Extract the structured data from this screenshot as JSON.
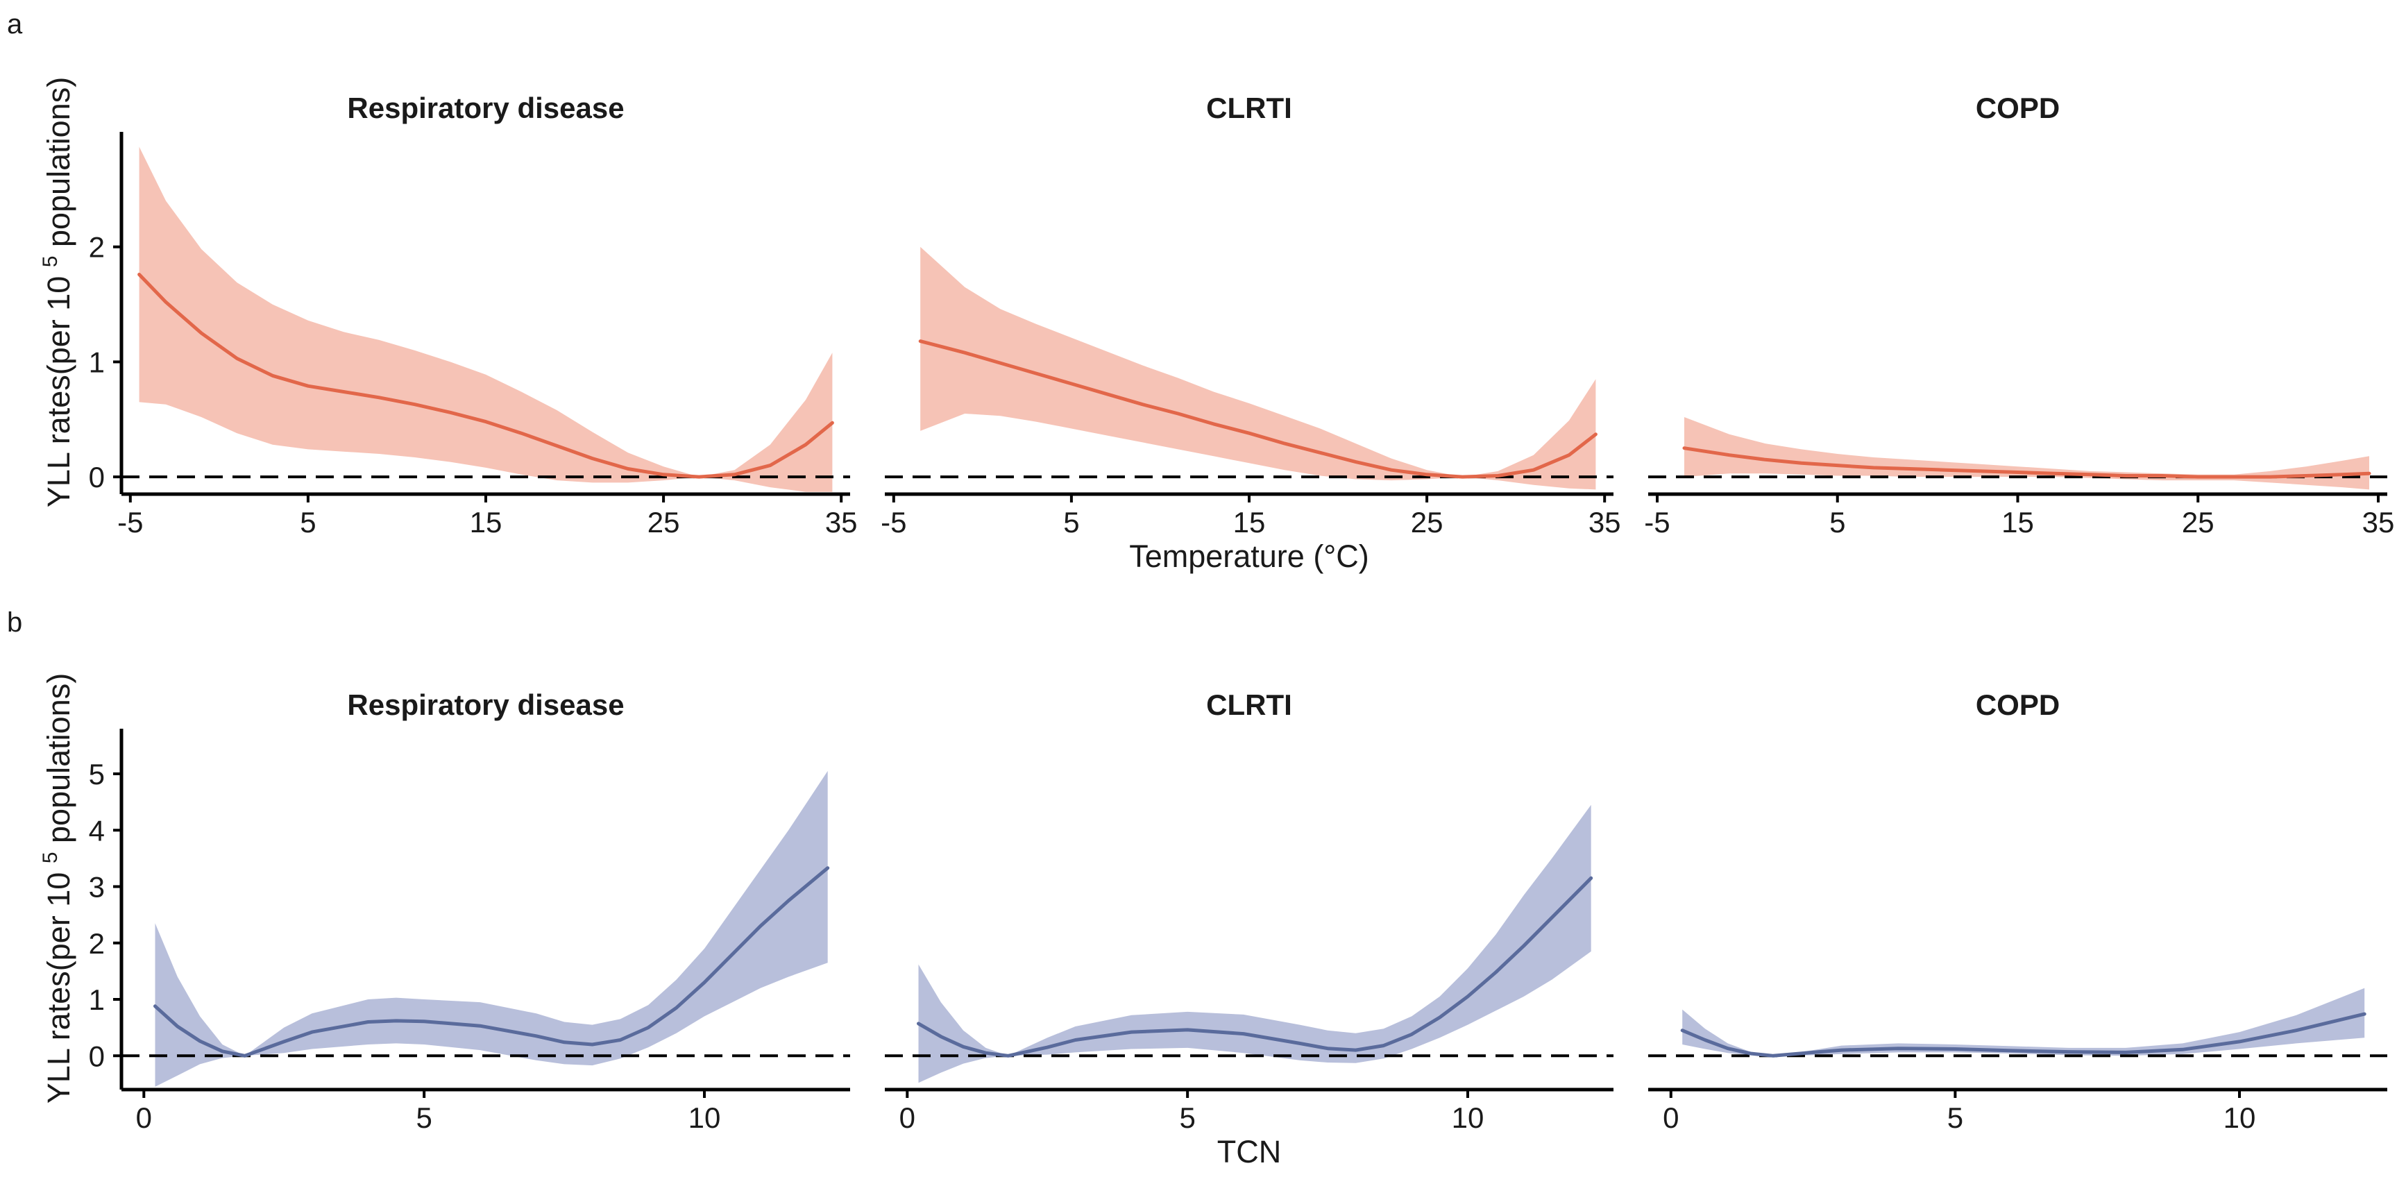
{
  "panel_labels": [
    "a",
    "b"
  ],
  "colors": {
    "temp_line": "#e2674a",
    "temp_band": "#f6c3b6",
    "tcn_line": "#5a6b9c",
    "tcn_band": "#b8bfdb"
  },
  "chart_data": [
    {
      "id": "a1",
      "row": "a",
      "type": "line",
      "title": "Respiratory disease",
      "xlabel": "",
      "ylabel": "YLL rates(per 10^5 populations)",
      "xlim": [
        -5.5,
        35.5
      ],
      "ylim": [
        -0.15,
        3.0
      ],
      "xticks": [
        -5,
        5,
        15,
        25,
        35
      ],
      "xtick_labels": [
        "-5",
        "5",
        "15",
        "25",
        "35"
      ],
      "yticks": [
        0,
        1,
        2
      ],
      "ytick_labels": [
        "0",
        "1",
        "2"
      ],
      "x": [
        -4.5,
        -3,
        -1,
        1,
        3,
        5,
        7,
        9,
        11,
        13,
        15,
        17,
        19,
        21,
        23,
        25,
        27,
        29,
        31,
        33,
        34.5
      ],
      "y": [
        1.76,
        1.52,
        1.25,
        1.03,
        0.88,
        0.79,
        0.74,
        0.69,
        0.63,
        0.56,
        0.48,
        0.38,
        0.27,
        0.16,
        0.07,
        0.02,
        0.0,
        0.02,
        0.1,
        0.28,
        0.47
      ],
      "lower": [
        0.65,
        0.63,
        0.52,
        0.38,
        0.28,
        0.24,
        0.22,
        0.2,
        0.17,
        0.13,
        0.08,
        0.02,
        -0.03,
        -0.05,
        -0.05,
        -0.03,
        0.0,
        -0.03,
        -0.09,
        -0.13,
        -0.13
      ],
      "upper": [
        2.87,
        2.4,
        1.98,
        1.69,
        1.5,
        1.36,
        1.26,
        1.19,
        1.1,
        1.0,
        0.89,
        0.74,
        0.58,
        0.39,
        0.21,
        0.09,
        0.0,
        0.06,
        0.28,
        0.67,
        1.08
      ],
      "reference_line": 0
    },
    {
      "id": "a2",
      "row": "a",
      "type": "line",
      "title": "CLRTI",
      "xlabel": "Temperature (°C)",
      "ylabel": "",
      "xlim": [
        -5.5,
        35.5
      ],
      "ylim": [
        -0.15,
        3.0
      ],
      "xticks": [
        -5,
        5,
        15,
        25,
        35
      ],
      "xtick_labels": [
        "-5",
        "5",
        "15",
        "25",
        "35"
      ],
      "x": [
        -3.5,
        -1,
        1,
        3,
        5,
        7,
        9,
        11,
        13,
        15,
        17,
        19,
        21,
        23,
        25,
        27,
        29,
        31,
        33,
        34.5
      ],
      "y": [
        1.18,
        1.08,
        0.99,
        0.9,
        0.81,
        0.72,
        0.63,
        0.55,
        0.46,
        0.38,
        0.29,
        0.21,
        0.13,
        0.06,
        0.02,
        0.0,
        0.01,
        0.06,
        0.19,
        0.37
      ],
      "lower": [
        0.4,
        0.55,
        0.53,
        0.48,
        0.42,
        0.36,
        0.3,
        0.24,
        0.18,
        0.12,
        0.06,
        0.01,
        -0.02,
        -0.03,
        -0.02,
        0.0,
        -0.03,
        -0.07,
        -0.1,
        -0.11
      ],
      "upper": [
        2.0,
        1.65,
        1.46,
        1.33,
        1.21,
        1.09,
        0.97,
        0.86,
        0.74,
        0.64,
        0.53,
        0.42,
        0.29,
        0.16,
        0.06,
        0.0,
        0.05,
        0.19,
        0.49,
        0.85
      ],
      "reference_line": 0
    },
    {
      "id": "a3",
      "row": "a",
      "type": "line",
      "title": "COPD",
      "xlabel": "",
      "ylabel": "",
      "xlim": [
        -5.5,
        35.5
      ],
      "ylim": [
        -0.15,
        3.0
      ],
      "xticks": [
        -5,
        5,
        15,
        25,
        35
      ],
      "xtick_labels": [
        "-5",
        "5",
        "15",
        "25",
        "35"
      ],
      "x": [
        -3.5,
        -1,
        1,
        3,
        5,
        7,
        9,
        11,
        13,
        15,
        17,
        19,
        21,
        23,
        25,
        27,
        29,
        31,
        33,
        34.5
      ],
      "y": [
        0.25,
        0.19,
        0.15,
        0.12,
        0.1,
        0.08,
        0.07,
        0.06,
        0.05,
        0.04,
        0.03,
        0.02,
        0.01,
        0.01,
        0.0,
        0.0,
        0.0,
        0.01,
        0.02,
        0.03
      ],
      "lower": [
        0.0,
        0.03,
        0.03,
        0.02,
        0.01,
        0.01,
        0.0,
        0.0,
        0.0,
        0.0,
        0.0,
        -0.01,
        -0.02,
        -0.03,
        -0.03,
        -0.03,
        -0.05,
        -0.07,
        -0.09,
        -0.11
      ],
      "upper": [
        0.52,
        0.37,
        0.29,
        0.24,
        0.2,
        0.17,
        0.15,
        0.13,
        0.11,
        0.09,
        0.07,
        0.05,
        0.04,
        0.03,
        0.02,
        0.02,
        0.05,
        0.09,
        0.14,
        0.18
      ],
      "reference_line": 0
    },
    {
      "id": "b1",
      "row": "b",
      "type": "line",
      "title": "Respiratory disease",
      "xlabel": "",
      "ylabel": "YLL rates(per 10^5 populations)",
      "xlim": [
        -0.4,
        12.6
      ],
      "ylim": [
        -0.6,
        5.8
      ],
      "xticks": [
        0,
        5,
        10
      ],
      "xtick_labels": [
        "0",
        "5",
        "10"
      ],
      "yticks": [
        0,
        1,
        2,
        3,
        4,
        5
      ],
      "ytick_labels": [
        "0",
        "1",
        "2",
        "3",
        "4",
        "5"
      ],
      "x": [
        0.2,
        0.6,
        1.0,
        1.4,
        1.8,
        2.5,
        3.0,
        4.0,
        4.5,
        5.0,
        6.0,
        7.0,
        7.5,
        8.0,
        8.5,
        9.0,
        9.5,
        10.0,
        10.5,
        11.0,
        11.5,
        12.2
      ],
      "y": [
        0.88,
        0.52,
        0.26,
        0.08,
        0.0,
        0.25,
        0.42,
        0.6,
        0.62,
        0.61,
        0.53,
        0.35,
        0.24,
        0.2,
        0.28,
        0.5,
        0.85,
        1.3,
        1.8,
        2.3,
        2.75,
        3.33
      ],
      "lower": [
        -0.55,
        -0.35,
        -0.15,
        -0.04,
        0.0,
        0.05,
        0.12,
        0.2,
        0.22,
        0.2,
        0.1,
        -0.08,
        -0.15,
        -0.17,
        -0.05,
        0.15,
        0.4,
        0.7,
        0.95,
        1.2,
        1.4,
        1.65
      ],
      "upper": [
        2.35,
        1.4,
        0.7,
        0.2,
        0.0,
        0.5,
        0.75,
        1.0,
        1.03,
        1.0,
        0.95,
        0.75,
        0.6,
        0.55,
        0.65,
        0.9,
        1.35,
        1.9,
        2.6,
        3.3,
        4.0,
        5.05
      ],
      "reference_line": 0
    },
    {
      "id": "b2",
      "row": "b",
      "type": "line",
      "title": "CLRTI",
      "xlabel": "TCN",
      "ylabel": "",
      "xlim": [
        -0.4,
        12.6
      ],
      "ylim": [
        -0.6,
        5.8
      ],
      "xticks": [
        0,
        5,
        10
      ],
      "xtick_labels": [
        "0",
        "5",
        "10"
      ],
      "x": [
        0.2,
        0.6,
        1.0,
        1.4,
        1.8,
        2.5,
        3.0,
        4.0,
        5.0,
        6.0,
        7.0,
        7.5,
        8.0,
        8.5,
        9.0,
        9.5,
        10.0,
        10.5,
        11.0,
        11.5,
        12.2
      ],
      "y": [
        0.57,
        0.34,
        0.16,
        0.05,
        0.0,
        0.15,
        0.28,
        0.42,
        0.46,
        0.39,
        0.22,
        0.13,
        0.1,
        0.18,
        0.38,
        0.68,
        1.05,
        1.48,
        1.95,
        2.45,
        3.15
      ],
      "lower": [
        -0.48,
        -0.3,
        -0.14,
        -0.04,
        0.0,
        0.02,
        0.06,
        0.12,
        0.14,
        0.05,
        -0.08,
        -0.12,
        -0.13,
        -0.05,
        0.12,
        0.32,
        0.55,
        0.8,
        1.05,
        1.35,
        1.85
      ],
      "upper": [
        1.62,
        0.95,
        0.45,
        0.14,
        0.0,
        0.32,
        0.52,
        0.72,
        0.78,
        0.73,
        0.55,
        0.45,
        0.4,
        0.48,
        0.7,
        1.05,
        1.55,
        2.15,
        2.85,
        3.5,
        4.45
      ],
      "reference_line": 0
    },
    {
      "id": "b3",
      "row": "b",
      "type": "line",
      "title": "COPD",
      "xlabel": "",
      "ylabel": "",
      "xlim": [
        -0.4,
        12.6
      ],
      "ylim": [
        -0.6,
        5.8
      ],
      "xticks": [
        0,
        5,
        10
      ],
      "xtick_labels": [
        "0",
        "5",
        "10"
      ],
      "x": [
        0.2,
        0.6,
        1.0,
        1.4,
        1.8,
        2.5,
        3.0,
        4.0,
        5.0,
        6.0,
        7.0,
        8.0,
        9.0,
        10.0,
        11.0,
        12.2
      ],
      "y": [
        0.45,
        0.28,
        0.13,
        0.04,
        0.0,
        0.06,
        0.1,
        0.13,
        0.12,
        0.09,
        0.07,
        0.06,
        0.11,
        0.25,
        0.45,
        0.74
      ],
      "lower": [
        0.2,
        0.12,
        0.05,
        0.01,
        0.0,
        0.01,
        0.03,
        0.06,
        0.06,
        0.04,
        0.01,
        0.0,
        0.03,
        0.12,
        0.22,
        0.32
      ],
      "upper": [
        0.82,
        0.48,
        0.22,
        0.07,
        0.0,
        0.1,
        0.18,
        0.22,
        0.2,
        0.17,
        0.14,
        0.14,
        0.22,
        0.42,
        0.72,
        1.2
      ],
      "reference_line": 0
    }
  ]
}
